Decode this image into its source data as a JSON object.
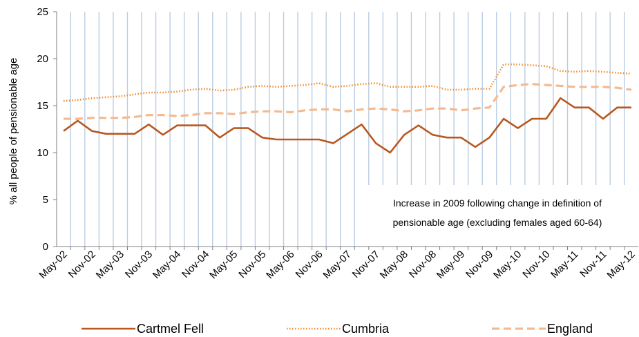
{
  "chart_data": {
    "type": "line",
    "title": "",
    "xlabel": "",
    "ylabel": "% all people of pensionable age",
    "ylim": [
      0,
      25
    ],
    "yticks": [
      0,
      5,
      10,
      15,
      20,
      25
    ],
    "grid": "vertical gridlines on every period",
    "legend_position": "bottom",
    "x": [
      "May-02",
      "Aug-02",
      "Nov-02",
      "Feb-03",
      "May-03",
      "Aug-03",
      "Nov-03",
      "Feb-04",
      "May-04",
      "Aug-04",
      "Nov-04",
      "Feb-05",
      "May-05",
      "Aug-05",
      "Nov-05",
      "Feb-06",
      "May-06",
      "Aug-06",
      "Nov-06",
      "Feb-07",
      "May-07",
      "Aug-07",
      "Nov-07",
      "Feb-08",
      "May-08",
      "Aug-08",
      "Nov-08",
      "Feb-09",
      "May-09",
      "Aug-09",
      "Nov-09",
      "Feb-10",
      "May-10",
      "Aug-10",
      "Nov-10",
      "Feb-11",
      "May-11",
      "Aug-11",
      "Nov-11",
      "Feb-12",
      "May-12"
    ],
    "x_tick_labels": [
      "May-02",
      "Nov-02",
      "May-03",
      "Nov-03",
      "May-04",
      "Nov-04",
      "May-05",
      "Nov-05",
      "May-06",
      "Nov-06",
      "May-07",
      "Nov-07",
      "May-08",
      "Nov-08",
      "May-09",
      "Nov-09",
      "May-10",
      "Nov-10",
      "May-11",
      "Nov-11",
      "May-12"
    ],
    "series": [
      {
        "name": "Cartmel Fell",
        "color": "#b8571f",
        "style": "solid",
        "values": [
          12.3,
          13.4,
          12.3,
          12.0,
          12.0,
          12.0,
          13.0,
          11.9,
          12.9,
          12.9,
          12.9,
          11.6,
          12.6,
          12.6,
          11.6,
          11.4,
          11.4,
          11.4,
          11.4,
          11.0,
          12.0,
          13.0,
          11.0,
          10.0,
          11.9,
          12.9,
          11.9,
          11.6,
          11.6,
          10.6,
          11.6,
          13.6,
          12.6,
          13.6,
          13.6,
          15.8,
          14.8,
          14.8,
          13.6,
          14.8,
          14.8
        ]
      },
      {
        "name": "Cumbria",
        "color": "#f08a2c",
        "style": "dotted",
        "values": [
          15.5,
          15.6,
          15.8,
          15.9,
          16.0,
          16.2,
          16.4,
          16.4,
          16.5,
          16.7,
          16.8,
          16.6,
          16.7,
          17.0,
          17.1,
          17.0,
          17.1,
          17.2,
          17.4,
          17.0,
          17.1,
          17.3,
          17.4,
          17.0,
          17.0,
          17.0,
          17.1,
          16.7,
          16.7,
          16.8,
          16.8,
          19.4,
          19.4,
          19.3,
          19.2,
          18.7,
          18.6,
          18.7,
          18.6,
          18.5,
          18.4
        ]
      },
      {
        "name": "England",
        "color": "#f5b98f",
        "style": "dashed",
        "values": [
          13.6,
          13.6,
          13.7,
          13.7,
          13.7,
          13.8,
          14.0,
          14.0,
          13.9,
          14.0,
          14.2,
          14.2,
          14.1,
          14.3,
          14.4,
          14.4,
          14.3,
          14.5,
          14.6,
          14.6,
          14.4,
          14.6,
          14.7,
          14.6,
          14.4,
          14.5,
          14.7,
          14.7,
          14.5,
          14.7,
          14.8,
          17.0,
          17.2,
          17.3,
          17.2,
          17.1,
          17.0,
          17.0,
          17.0,
          16.9,
          16.7
        ]
      }
    ],
    "annotation_lines": [
      "Increase in 2009 following change in definition of",
      "pensionable age (excluding females aged 60-64)"
    ]
  },
  "colors": {
    "gridline": "#b9cde3",
    "axis": "#808080"
  }
}
